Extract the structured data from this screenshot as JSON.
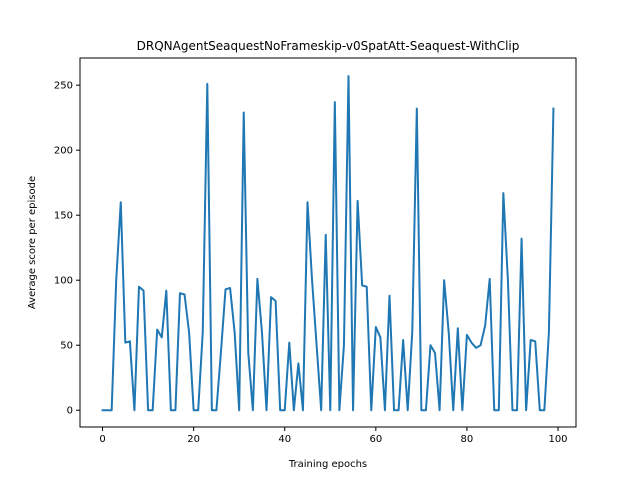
{
  "chart_data": {
    "type": "line",
    "title": "DRQNAgentSeaquestNoFrameskip-v0SpatAtt-Seaquest-WithClip",
    "xlabel": "Training epochs",
    "ylabel": "Average score per episode",
    "xlim": [
      -4.95,
      103.95
    ],
    "ylim": [
      -12.9,
      270.9
    ],
    "xticks": [
      0,
      20,
      40,
      60,
      80,
      100
    ],
    "yticks": [
      0,
      50,
      100,
      150,
      200,
      250
    ],
    "xtick_labels": [
      "0",
      "20",
      "40",
      "60",
      "80",
      "100"
    ],
    "ytick_labels": [
      "0",
      "50",
      "100",
      "150",
      "200",
      "250"
    ],
    "grid": false,
    "series": [
      {
        "color": "#1f77b4",
        "x": [
          0,
          1,
          2,
          3,
          4,
          5,
          6,
          7,
          8,
          9,
          10,
          11,
          12,
          13,
          14,
          15,
          16,
          17,
          18,
          19,
          20,
          21,
          22,
          23,
          24,
          25,
          26,
          27,
          28,
          29,
          30,
          31,
          32,
          33,
          34,
          35,
          36,
          37,
          38,
          39,
          40,
          41,
          42,
          43,
          44,
          45,
          46,
          47,
          48,
          49,
          50,
          51,
          52,
          53,
          54,
          55,
          56,
          57,
          58,
          59,
          60,
          61,
          62,
          63,
          64,
          65,
          66,
          67,
          68,
          69,
          70,
          71,
          72,
          73,
          74,
          75,
          76,
          77,
          78,
          79,
          80,
          81,
          82,
          83,
          84,
          85,
          86,
          87,
          88,
          89,
          90,
          91,
          92,
          93,
          94,
          95,
          96,
          97,
          98,
          99
        ],
        "y": [
          0,
          0,
          0,
          100,
          160,
          52,
          53,
          0,
          95,
          92,
          0,
          0,
          62,
          56,
          92,
          0,
          0,
          90,
          89,
          60,
          0,
          0,
          60,
          251,
          0,
          0,
          45,
          93,
          94,
          60,
          0,
          229,
          44,
          0,
          101,
          60,
          0,
          87,
          84,
          0,
          0,
          52,
          0,
          36,
          0,
          160,
          100,
          50,
          0,
          135,
          0,
          237,
          0,
          50,
          257,
          0,
          161,
          96,
          95,
          0,
          64,
          56,
          0,
          88,
          0,
          0,
          54,
          0,
          60,
          232,
          0,
          0,
          50,
          44,
          0,
          100,
          60,
          0,
          63,
          0,
          58,
          52,
          48,
          50,
          65,
          101,
          0,
          0,
          167,
          100,
          0,
          0,
          132,
          0,
          54,
          53,
          0,
          0,
          60,
          232
        ]
      }
    ]
  }
}
